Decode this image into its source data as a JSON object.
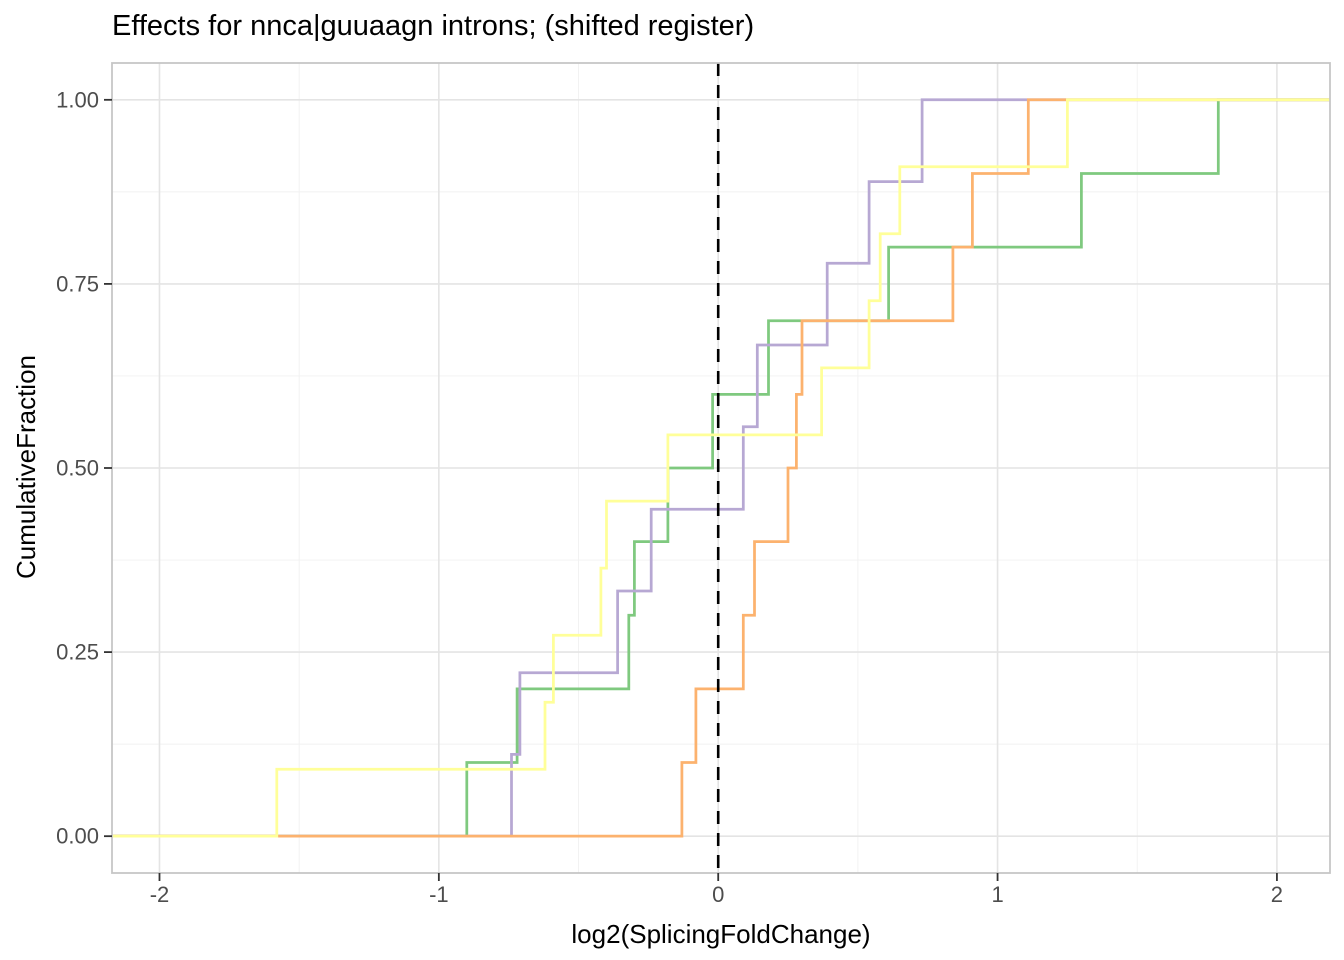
{
  "chart_data": {
    "type": "line",
    "subtype": "ecdf_step",
    "title": "Effects for nnca|guuaagn introns; (shifted register)",
    "xlabel": "log2(SplicingFoldChange)",
    "ylabel": "CumulativeFraction",
    "xlim": [
      -2.17,
      2.19
    ],
    "ylim": [
      -0.05,
      1.05
    ],
    "x_ticks": {
      "values": [
        -2,
        -1,
        0,
        1,
        2
      ],
      "labels": [
        "-2",
        "-1",
        "0",
        "1",
        "2"
      ]
    },
    "y_ticks": {
      "values": [
        0,
        0.25,
        0.5,
        0.75,
        1
      ],
      "labels": [
        "0.00",
        "0.25",
        "0.50",
        "0.75",
        "1.00"
      ]
    },
    "grid": true,
    "legend": "none",
    "reference_line": {
      "x": 0,
      "style": "dashed",
      "color": "#000000"
    },
    "series": [
      {
        "name": "green",
        "color": "#7fc97f",
        "n_points": 10,
        "jump_x": [
          -0.9,
          -0.72,
          -0.32,
          -0.3,
          -0.18,
          -0.02,
          0.18,
          0.61,
          1.3,
          1.79
        ],
        "levels": [
          0.1,
          0.2,
          0.3,
          0.4,
          0.5,
          0.6,
          0.7,
          0.8,
          0.9,
          1.0
        ]
      },
      {
        "name": "purple",
        "color": "#b7a8d3",
        "n_points": 9,
        "jump_x": [
          -0.74,
          -0.71,
          -0.36,
          -0.24,
          0.09,
          0.14,
          0.39,
          0.54,
          0.73
        ],
        "levels": [
          0.111,
          0.222,
          0.333,
          0.444,
          0.556,
          0.667,
          0.778,
          0.889,
          1.0
        ]
      },
      {
        "name": "orange",
        "color": "#fcb26e",
        "n_points": 10,
        "jump_x": [
          -0.13,
          -0.08,
          0.09,
          0.13,
          0.25,
          0.28,
          0.3,
          0.84,
          0.91,
          1.11
        ],
        "levels": [
          0.1,
          0.2,
          0.3,
          0.4,
          0.5,
          0.6,
          0.7,
          0.8,
          0.9,
          1.0
        ]
      },
      {
        "name": "yellow",
        "color": "#ffff99",
        "n_points": 11,
        "jump_x": [
          -1.58,
          -0.62,
          -0.59,
          -0.42,
          -0.4,
          -0.18,
          0.37,
          0.54,
          0.58,
          0.65,
          1.25
        ],
        "levels": [
          0.091,
          0.182,
          0.273,
          0.364,
          0.455,
          0.545,
          0.636,
          0.727,
          0.818,
          0.909,
          1.0
        ]
      }
    ],
    "style": {
      "panel_border_color": "#c6c6c6",
      "grid_major_color": "#e4e4e4",
      "grid_minor_color": "#f1f1f1",
      "tick_color": "#333333",
      "tick_label_color": "#4d4d4d",
      "x_minor": [
        -1.5,
        -0.5,
        0.5,
        1.5
      ],
      "y_minor": [
        0.125,
        0.375,
        0.625,
        0.875
      ]
    }
  }
}
